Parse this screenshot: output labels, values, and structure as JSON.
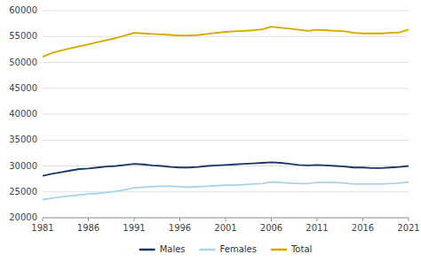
{
  "chart_data": {
    "type": "line",
    "x": [
      1981,
      1982,
      1983,
      1984,
      1985,
      1986,
      1987,
      1988,
      1989,
      1990,
      1991,
      1992,
      1993,
      1994,
      1995,
      1996,
      1997,
      1998,
      1999,
      2000,
      2001,
      2002,
      2003,
      2004,
      2005,
      2006,
      2007,
      2008,
      2009,
      2010,
      2011,
      2012,
      2013,
      2014,
      2015,
      2016,
      2017,
      2018,
      2019,
      2020,
      2021
    ],
    "series": [
      {
        "name": "Males",
        "color": "#1a3668",
        "values": [
          28100,
          28500,
          28800,
          29100,
          29400,
          29500,
          29700,
          29900,
          30000,
          30200,
          30400,
          30300,
          30100,
          30000,
          29800,
          29700,
          29700,
          29800,
          30000,
          30100,
          30200,
          30300,
          30400,
          30500,
          30600,
          30700,
          30600,
          30400,
          30200,
          30100,
          30200,
          30100,
          30000,
          29900,
          29700,
          29700,
          29600,
          29600,
          29700,
          29800,
          30000
        ]
      },
      {
        "name": "Females",
        "color": "#a8d4e8",
        "values": [
          23500,
          23800,
          24000,
          24200,
          24400,
          24600,
          24700,
          24900,
          25100,
          25400,
          25800,
          25900,
          26000,
          26100,
          26100,
          26000,
          25900,
          26000,
          26100,
          26200,
          26300,
          26300,
          26400,
          26500,
          26600,
          26900,
          26800,
          26700,
          26600,
          26600,
          26800,
          26800,
          26800,
          26700,
          26500,
          26500,
          26500,
          26500,
          26600,
          26700,
          26900
        ]
      },
      {
        "name": "Total",
        "color": "#d4a800",
        "values": [
          51100,
          51800,
          52300,
          52700,
          53100,
          53500,
          53900,
          54300,
          54700,
          55200,
          55700,
          55600,
          55500,
          55400,
          55300,
          55200,
          55200,
          55300,
          55500,
          55700,
          55900,
          56000,
          56100,
          56200,
          56400,
          56900,
          56700,
          56500,
          56300,
          56100,
          56300,
          56200,
          56100,
          56000,
          55700,
          55600,
          55600,
          55600,
          55700,
          55800,
          56300
        ]
      }
    ],
    "xlim": [
      1981,
      2021
    ],
    "xticks": [
      1981,
      1986,
      1991,
      1996,
      2001,
      2006,
      2011,
      2016,
      2021
    ],
    "ylim": [
      20000,
      60000
    ],
    "yticks": [
      20000,
      25000,
      30000,
      35000,
      40000,
      45000,
      50000,
      55000,
      60000
    ],
    "grid": true,
    "legend": "bottom"
  }
}
